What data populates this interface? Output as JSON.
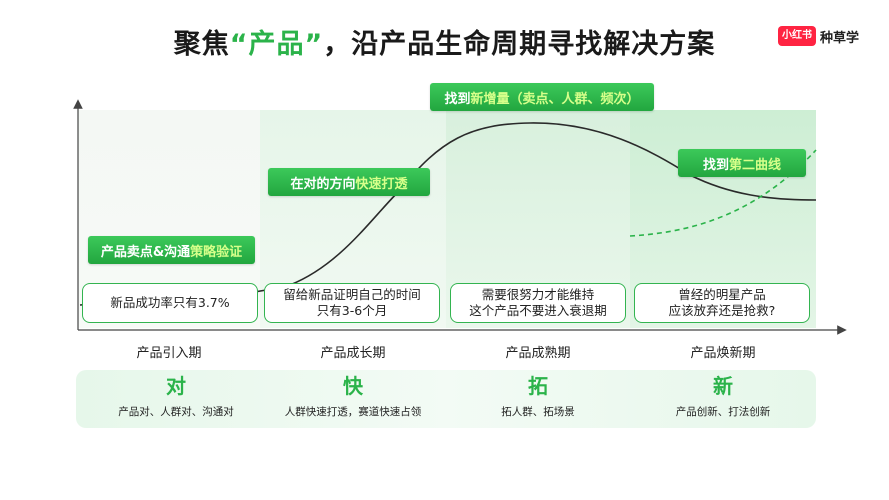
{
  "title": {
    "pre": "聚焦",
    "highlight": "“产品”",
    "post": "，沿产品生命周期寻找解决方案"
  },
  "brand": {
    "logo": "小红书",
    "text": "种草学"
  },
  "colors": {
    "green": "#2bb34a",
    "pill_accent": "#d6ff8a",
    "brand_red": "#ff2442"
  },
  "pills": {
    "intro": {
      "text": "产品卖点&沟通",
      "accent": "策略验证"
    },
    "growth": {
      "text": "在对的方向",
      "accent": "快速打透"
    },
    "mature": {
      "text": "找到",
      "accent": "新增量（卖点、人群、频次）"
    },
    "renew": {
      "text": "找到",
      "accent": "第二曲线"
    }
  },
  "notes": {
    "intro": {
      "line1": "新品成功率只有3.7%"
    },
    "growth": {
      "line1": "留给新品证明自己的时间",
      "line2": "只有3-6个月"
    },
    "mature": {
      "line1": "需要很努力才能维持",
      "line2": "这个产品不要进入衰退期"
    },
    "renew": {
      "line1": "曾经的明星产品",
      "line2": "应该放弃还是抢救?"
    }
  },
  "phases": [
    "产品引入期",
    "产品成长期",
    "产品成熟期",
    "产品焕新期"
  ],
  "strategies": [
    {
      "big": "对",
      "small": "产品对、人群对、沟通对"
    },
    {
      "big": "快",
      "small": "人群快速打透，赛道快速占领"
    },
    {
      "big": "拓",
      "small": "拓人群、拓场景"
    },
    {
      "big": "新",
      "small": "产品创新、打法创新"
    }
  ]
}
